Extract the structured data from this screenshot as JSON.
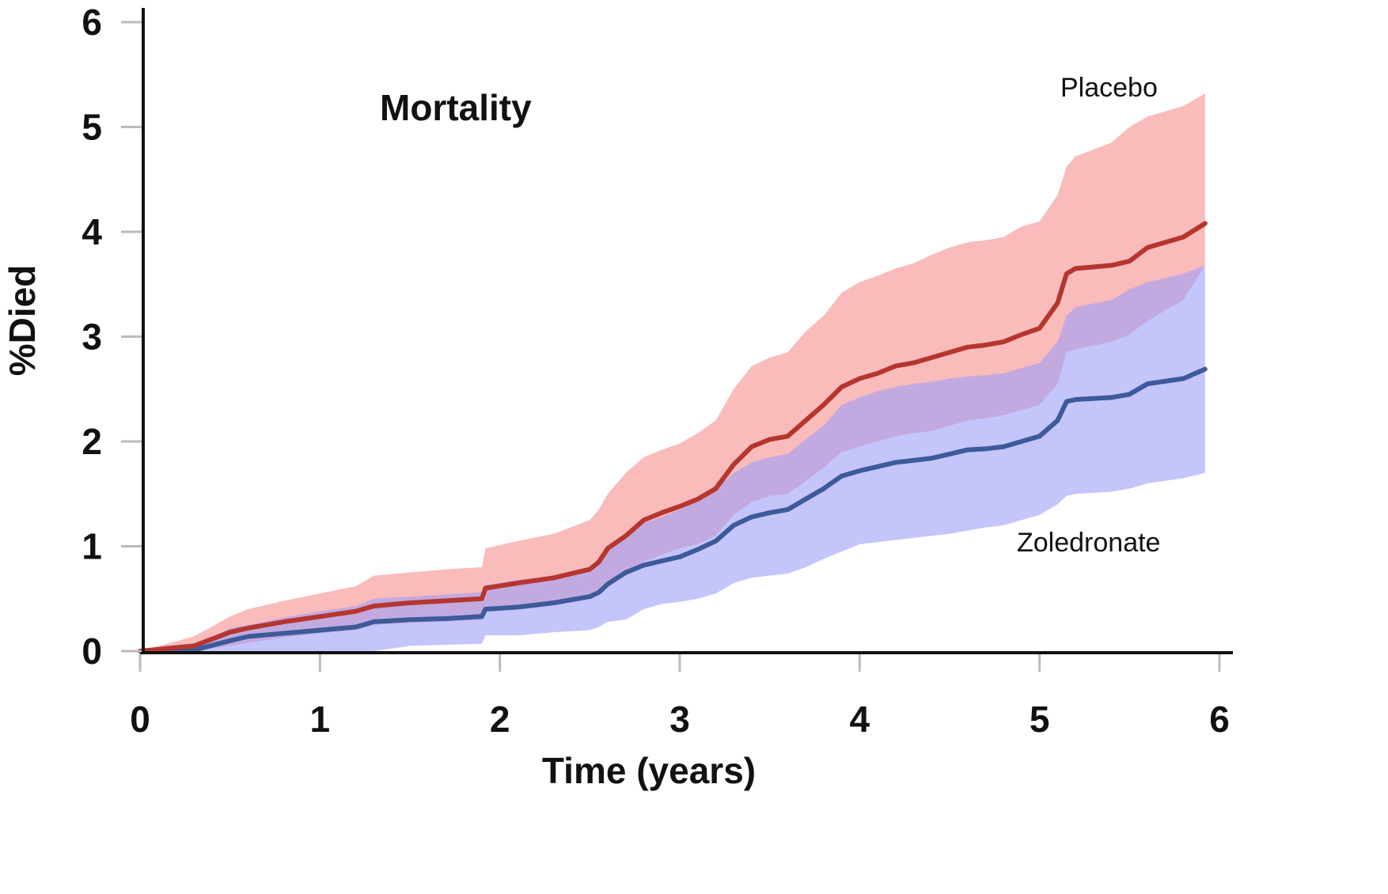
{
  "chart_data": {
    "type": "line",
    "title": "Mortality",
    "xlabel": "Time (years)",
    "ylabel": "%Died",
    "xlim": [
      0,
      6
    ],
    "ylim": [
      0,
      6
    ],
    "x_ticks": [
      "0",
      "1",
      "2",
      "3",
      "4",
      "5",
      "6"
    ],
    "y_ticks": [
      "0",
      "1",
      "2",
      "3",
      "4",
      "5",
      "6"
    ],
    "grid": false,
    "series": [
      {
        "name": "Placebo",
        "color": "#b5362e",
        "band_color": "#f9a8a8",
        "x": [
          0,
          0.3,
          0.5,
          0.6,
          0.8,
          1.0,
          1.2,
          1.3,
          1.5,
          1.7,
          1.9,
          1.92,
          2.1,
          2.3,
          2.5,
          2.55,
          2.6,
          2.7,
          2.8,
          2.9,
          3.0,
          3.1,
          3.2,
          3.3,
          3.4,
          3.5,
          3.6,
          3.7,
          3.8,
          3.9,
          4.0,
          4.1,
          4.2,
          4.3,
          4.4,
          4.5,
          4.6,
          4.7,
          4.8,
          4.9,
          5.0,
          5.1,
          5.15,
          5.2,
          5.4,
          5.5,
          5.6,
          5.8,
          5.92
        ],
        "y": [
          0,
          0.05,
          0.18,
          0.22,
          0.28,
          0.33,
          0.38,
          0.43,
          0.46,
          0.48,
          0.5,
          0.6,
          0.65,
          0.7,
          0.78,
          0.85,
          0.98,
          1.1,
          1.25,
          1.32,
          1.38,
          1.45,
          1.55,
          1.78,
          1.95,
          2.02,
          2.05,
          2.2,
          2.35,
          2.52,
          2.6,
          2.65,
          2.72,
          2.75,
          2.8,
          2.85,
          2.9,
          2.92,
          2.95,
          3.02,
          3.08,
          3.32,
          3.6,
          3.65,
          3.68,
          3.72,
          3.85,
          3.95,
          4.08
        ],
        "upper": [
          0,
          0.14,
          0.33,
          0.4,
          0.48,
          0.55,
          0.62,
          0.72,
          0.75,
          0.78,
          0.8,
          0.98,
          1.05,
          1.12,
          1.25,
          1.35,
          1.5,
          1.7,
          1.85,
          1.92,
          1.98,
          2.08,
          2.2,
          2.5,
          2.72,
          2.8,
          2.85,
          3.05,
          3.2,
          3.42,
          3.52,
          3.58,
          3.65,
          3.7,
          3.78,
          3.85,
          3.9,
          3.92,
          3.95,
          4.05,
          4.1,
          4.35,
          4.62,
          4.72,
          4.85,
          5.0,
          5.1,
          5.2,
          5.32
        ],
        "lower": [
          0,
          0.0,
          0.05,
          0.08,
          0.13,
          0.17,
          0.2,
          0.25,
          0.27,
          0.28,
          0.3,
          0.4,
          0.42,
          0.45,
          0.5,
          0.55,
          0.63,
          0.72,
          0.85,
          0.92,
          0.98,
          1.02,
          1.1,
          1.3,
          1.42,
          1.48,
          1.5,
          1.62,
          1.75,
          1.9,
          1.95,
          2.0,
          2.05,
          2.08,
          2.1,
          2.15,
          2.2,
          2.22,
          2.25,
          2.3,
          2.35,
          2.55,
          2.85,
          2.88,
          2.95,
          3.02,
          3.15,
          3.35,
          3.68
        ]
      },
      {
        "name": "Zoledronate",
        "color": "#3d5a9a",
        "band_color": "#9d9ef8",
        "x": [
          0,
          0.3,
          0.5,
          0.6,
          0.8,
          1.0,
          1.2,
          1.3,
          1.5,
          1.7,
          1.9,
          1.92,
          2.1,
          2.3,
          2.5,
          2.55,
          2.6,
          2.7,
          2.8,
          2.9,
          3.0,
          3.1,
          3.2,
          3.3,
          3.4,
          3.5,
          3.6,
          3.7,
          3.8,
          3.9,
          4.0,
          4.1,
          4.2,
          4.3,
          4.4,
          4.5,
          4.6,
          4.7,
          4.8,
          4.9,
          5.0,
          5.1,
          5.15,
          5.2,
          5.4,
          5.5,
          5.6,
          5.8,
          5.92
        ],
        "y": [
          0,
          0.01,
          0.1,
          0.14,
          0.17,
          0.2,
          0.23,
          0.28,
          0.3,
          0.31,
          0.33,
          0.4,
          0.42,
          0.46,
          0.52,
          0.56,
          0.64,
          0.75,
          0.82,
          0.86,
          0.9,
          0.97,
          1.05,
          1.2,
          1.28,
          1.32,
          1.35,
          1.45,
          1.55,
          1.67,
          1.72,
          1.76,
          1.8,
          1.82,
          1.84,
          1.88,
          1.92,
          1.93,
          1.95,
          2.0,
          2.05,
          2.2,
          2.38,
          2.4,
          2.42,
          2.45,
          2.55,
          2.6,
          2.69
        ],
        "upper": [
          0,
          0.03,
          0.22,
          0.25,
          0.32,
          0.38,
          0.43,
          0.5,
          0.52,
          0.54,
          0.56,
          0.63,
          0.68,
          0.72,
          0.8,
          0.88,
          0.95,
          1.08,
          1.22,
          1.28,
          1.35,
          1.43,
          1.55,
          1.7,
          1.8,
          1.85,
          1.88,
          2.02,
          2.15,
          2.35,
          2.42,
          2.48,
          2.52,
          2.55,
          2.57,
          2.6,
          2.62,
          2.63,
          2.65,
          2.7,
          2.75,
          2.95,
          3.2,
          3.28,
          3.35,
          3.45,
          3.52,
          3.6,
          3.68
        ],
        "lower": [
          0,
          0.0,
          0.0,
          0.0,
          0.0,
          0.0,
          0.0,
          0.0,
          0.05,
          0.06,
          0.07,
          0.15,
          0.15,
          0.18,
          0.2,
          0.23,
          0.28,
          0.3,
          0.4,
          0.45,
          0.47,
          0.5,
          0.55,
          0.65,
          0.7,
          0.72,
          0.74,
          0.8,
          0.88,
          0.95,
          1.02,
          1.04,
          1.06,
          1.08,
          1.1,
          1.12,
          1.15,
          1.18,
          1.2,
          1.25,
          1.3,
          1.4,
          1.48,
          1.5,
          1.52,
          1.55,
          1.6,
          1.65,
          1.7
        ]
      }
    ]
  }
}
